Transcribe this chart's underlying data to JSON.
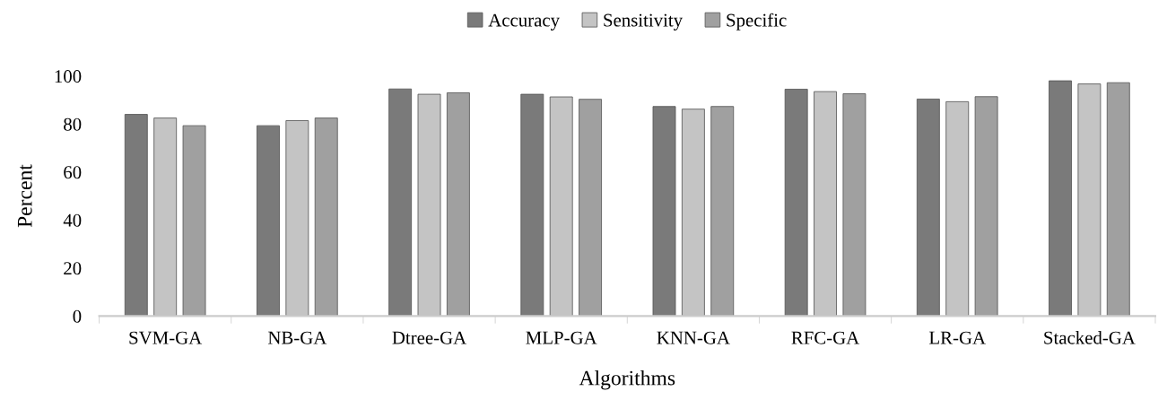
{
  "chart_data": {
    "type": "bar",
    "xlabel": "Algorithms",
    "ylabel": "Percent",
    "categories": [
      "SVM-GA",
      "NB-GA",
      "Dtree-GA",
      "MLP-GA",
      "KNN-GA",
      "RFC-GA",
      "LR-GA",
      "Stacked-GA"
    ],
    "series": [
      {
        "name": "Accuracy",
        "color": "#7a7a7a",
        "values": [
          84,
          79.3,
          94.6,
          92.4,
          87.3,
          94.5,
          90.4,
          98
        ]
      },
      {
        "name": "Sensitivity",
        "color": "#c4c4c4",
        "values": [
          82.5,
          81.4,
          92.4,
          91.3,
          86.2,
          93.5,
          89.3,
          96.7
        ]
      },
      {
        "name": "Specific",
        "color": "#a0a0a0",
        "values": [
          79.3,
          82.5,
          93,
          90.3,
          87.3,
          92.6,
          91.4,
          97.2
        ]
      }
    ],
    "ylim": [
      0,
      100
    ],
    "yticks": [
      0,
      20,
      40,
      60,
      80,
      100
    ],
    "grid": false,
    "legend": "top"
  }
}
